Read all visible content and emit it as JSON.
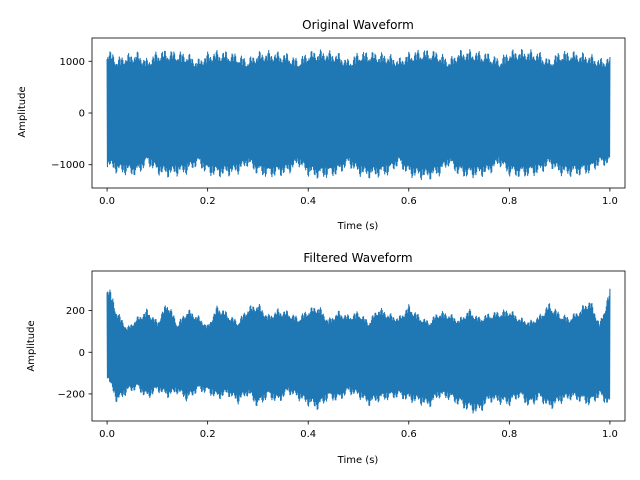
{
  "chart_data": [
    {
      "type": "line",
      "title": "Original Waveform",
      "xlabel": "Time (s)",
      "ylabel": "Amplitude",
      "xlim": [
        -0.03,
        1.03
      ],
      "ylim": [
        -1450,
        1450
      ],
      "xticks": [
        0.0,
        0.2,
        0.4,
        0.6,
        0.8,
        1.0
      ],
      "xtick_labels": [
        "0.0",
        "0.2",
        "0.4",
        "0.6",
        "0.8",
        "1.0"
      ],
      "yticks": [
        -1000,
        0,
        1000
      ],
      "ytick_labels": [
        "−1000",
        "0",
        "1000"
      ],
      "grid": false,
      "series": [
        {
          "color": "#1f77b4",
          "description_of_shape": "dense oscillation",
          "x": [
            0.0,
            0.02,
            0.04,
            0.06,
            0.08,
            0.1,
            0.12,
            0.14,
            0.16,
            0.18,
            0.2,
            0.22,
            0.24,
            0.26,
            0.28,
            0.3,
            0.32,
            0.34,
            0.36,
            0.38,
            0.4,
            0.42,
            0.44,
            0.46,
            0.48,
            0.5,
            0.52,
            0.54,
            0.56,
            0.58,
            0.6,
            0.62,
            0.64,
            0.66,
            0.68,
            0.7,
            0.72,
            0.74,
            0.76,
            0.78,
            0.8,
            0.82,
            0.84,
            0.86,
            0.88,
            0.9,
            0.92,
            0.94,
            0.96,
            0.98,
            1.0
          ],
          "upper_envelope": [
            1270,
            1080,
            1150,
            1190,
            1050,
            1210,
            1230,
            1200,
            1170,
            1040,
            1180,
            1220,
            1200,
            1150,
            1060,
            1190,
            1210,
            1190,
            1160,
            1050,
            1200,
            1230,
            1210,
            1170,
            1040,
            1190,
            1200,
            1180,
            1150,
            1060,
            1180,
            1230,
            1240,
            1190,
            1050,
            1220,
            1230,
            1200,
            1170,
            1060,
            1220,
            1240,
            1230,
            1190,
            1050,
            1200,
            1210,
            1180,
            1150,
            1060,
            1100
          ],
          "lower_envelope": [
            -1050,
            -1180,
            -1210,
            -1230,
            -1000,
            -1200,
            -1250,
            -1220,
            -1190,
            -1020,
            -1210,
            -1250,
            -1230,
            -1190,
            -1030,
            -1210,
            -1260,
            -1240,
            -1200,
            -1020,
            -1230,
            -1280,
            -1260,
            -1210,
            -1030,
            -1220,
            -1270,
            -1250,
            -1210,
            -1020,
            -1240,
            -1290,
            -1300,
            -1230,
            -1030,
            -1230,
            -1270,
            -1250,
            -1200,
            -1020,
            -1230,
            -1260,
            -1240,
            -1200,
            -1040,
            -1210,
            -1240,
            -1220,
            -1180,
            -1030,
            -1020
          ]
        }
      ]
    },
    {
      "type": "line",
      "title": "Filtered Waveform",
      "xlabel": "Time (s)",
      "ylabel": "Amplitude",
      "xlim": [
        -0.03,
        1.03
      ],
      "ylim": [
        -330,
        390
      ],
      "xticks": [
        0.0,
        0.2,
        0.4,
        0.6,
        0.8,
        1.0
      ],
      "xtick_labels": [
        "0.0",
        "0.2",
        "0.4",
        "0.6",
        "0.8",
        "1.0"
      ],
      "yticks": [
        -200,
        0,
        200
      ],
      "ytick_labels": [
        "−200",
        "0",
        "200"
      ],
      "grid": false,
      "series": [
        {
          "color": "#1f77b4",
          "x": [
            0.0,
            0.02,
            0.04,
            0.06,
            0.08,
            0.1,
            0.12,
            0.14,
            0.16,
            0.18,
            0.2,
            0.22,
            0.24,
            0.26,
            0.28,
            0.3,
            0.32,
            0.34,
            0.36,
            0.38,
            0.4,
            0.42,
            0.44,
            0.46,
            0.48,
            0.5,
            0.52,
            0.54,
            0.56,
            0.58,
            0.6,
            0.62,
            0.64,
            0.66,
            0.68,
            0.7,
            0.72,
            0.74,
            0.76,
            0.78,
            0.8,
            0.82,
            0.84,
            0.86,
            0.88,
            0.9,
            0.92,
            0.94,
            0.96,
            0.98,
            1.0
          ],
          "upper_envelope": [
            350,
            200,
            120,
            170,
            210,
            150,
            250,
            140,
            210,
            180,
            130,
            230,
            190,
            150,
            220,
            240,
            180,
            210,
            200,
            170,
            210,
            230,
            160,
            200,
            180,
            200,
            150,
            220,
            190,
            170,
            230,
            180,
            150,
            200,
            190,
            160,
            210,
            170,
            190,
            200,
            210,
            170,
            150,
            180,
            240,
            190,
            170,
            210,
            260,
            140,
            310
          ],
          "lower_envelope": [
            -120,
            -250,
            -200,
            -180,
            -230,
            -190,
            -220,
            -200,
            -240,
            -190,
            -200,
            -230,
            -210,
            -250,
            -210,
            -270,
            -220,
            -250,
            -200,
            -230,
            -260,
            -280,
            -230,
            -240,
            -200,
            -220,
            -260,
            -240,
            -230,
            -220,
            -240,
            -250,
            -270,
            -220,
            -230,
            -260,
            -290,
            -300,
            -240,
            -250,
            -260,
            -220,
            -270,
            -230,
            -280,
            -250,
            -230,
            -240,
            -260,
            -220,
            -270
          ]
        }
      ]
    }
  ]
}
